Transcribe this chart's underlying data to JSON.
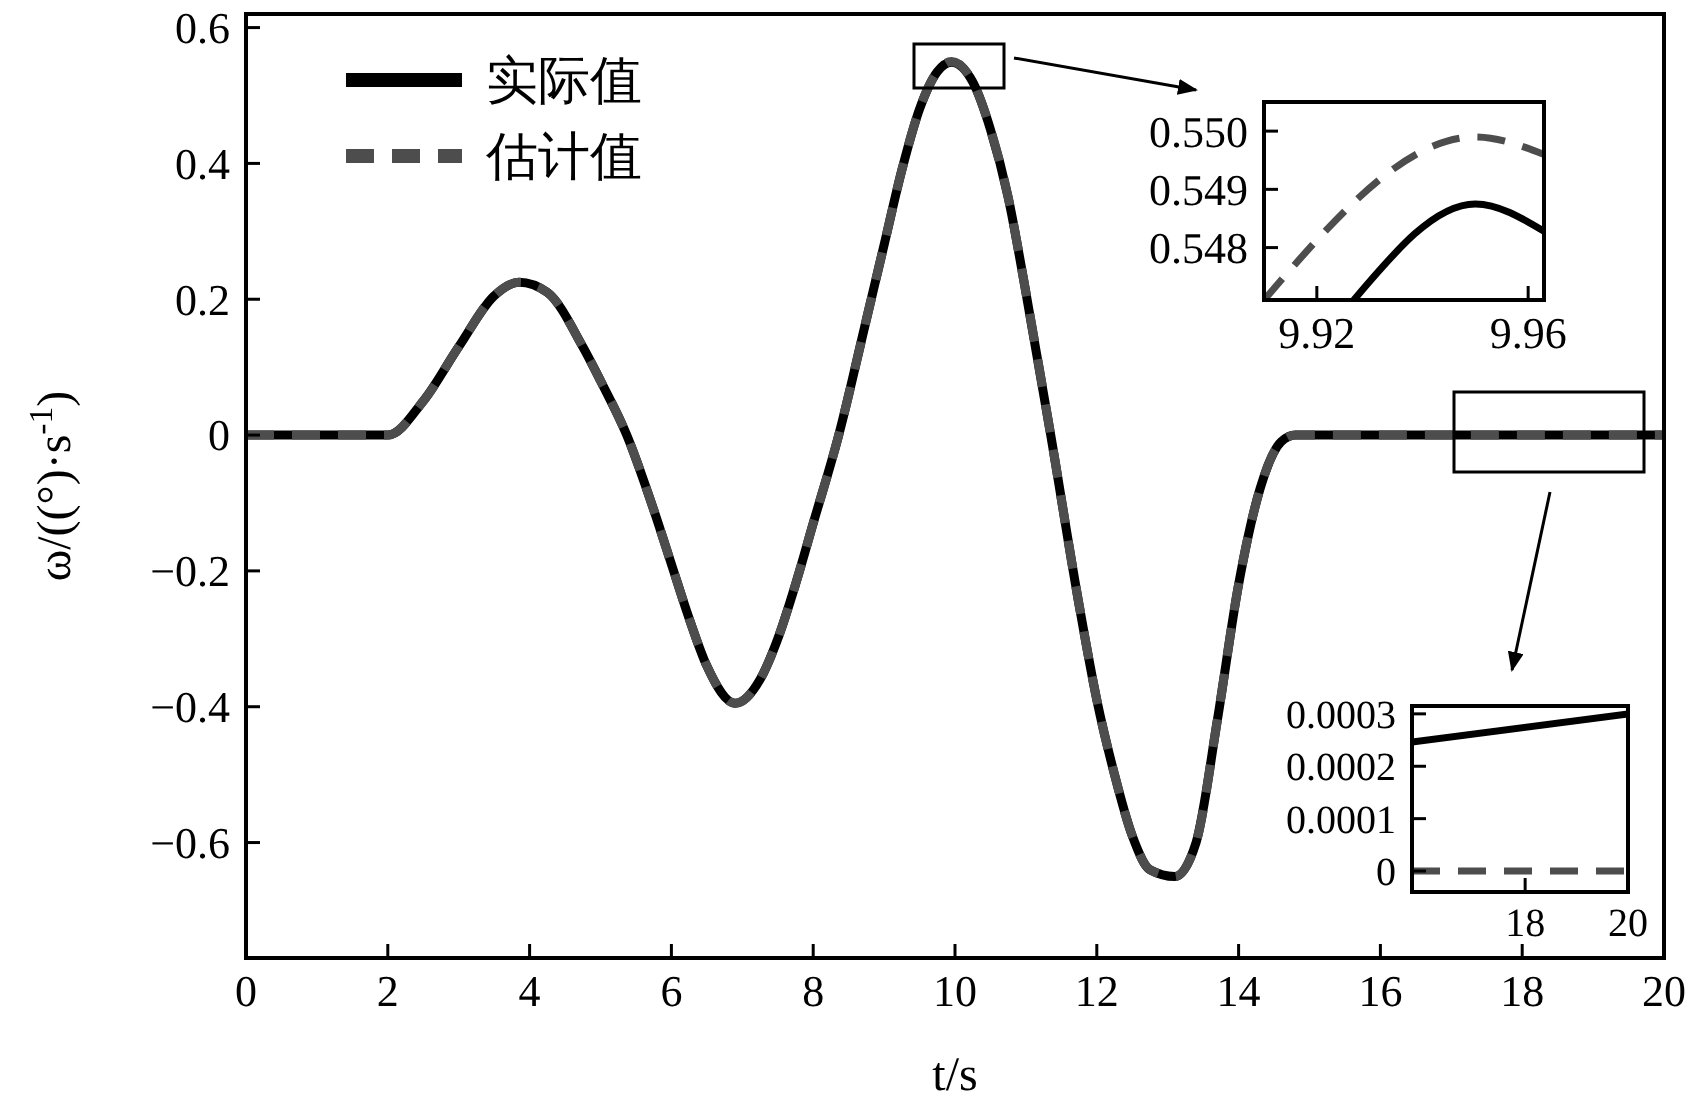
{
  "chart_data": [
    {
      "type": "line",
      "xlabel": "t/s",
      "ylabel": "ω/((°)·s$^{-1}$)",
      "xlim": [
        0,
        20
      ],
      "ylim": [
        -0.77,
        0.62
      ],
      "xticks": [
        0,
        2,
        4,
        6,
        8,
        10,
        12,
        14,
        16,
        18,
        20
      ],
      "yticks": [
        {
          "value": -0.6,
          "label": "−0.6"
        },
        {
          "value": -0.4,
          "label": "−0.4"
        },
        {
          "value": -0.2,
          "label": "−0.2"
        },
        0,
        0.2,
        0.4,
        0.6
      ],
      "legend": "top left",
      "grid": false,
      "series": [
        {
          "name": "实际值",
          "color": "#000000",
          "line_style": "solid",
          "x": [
            0,
            2,
            2.5,
            3,
            3.5,
            3.85,
            4.25,
            4.75,
            5,
            5.37,
            5.75,
            6,
            6.25,
            6.5,
            6.9,
            7.25,
            7.5,
            7.75,
            8,
            8.36,
            8.75,
            9,
            9.25,
            9.5,
            9.75,
            9.95,
            10.25,
            10.5,
            10.75,
            11,
            11.35,
            11.75,
            12,
            12.25,
            12.5,
            12.75,
            13.1,
            13.4,
            13.7,
            14,
            14.3,
            14.6,
            14.8,
            20
          ],
          "values": [
            0,
            0,
            0.05,
            0.13,
            0.205,
            0.225,
            0.21,
            0.13,
            0.08,
            0,
            -0.11,
            -0.19,
            -0.27,
            -0.34,
            -0.395,
            -0.36,
            -0.3,
            -0.22,
            -0.13,
            0,
            0.17,
            0.28,
            0.39,
            0.48,
            0.535,
            0.549,
            0.52,
            0.45,
            0.35,
            0.21,
            0,
            -0.25,
            -0.39,
            -0.5,
            -0.59,
            -0.64,
            -0.65,
            -0.6,
            -0.42,
            -0.22,
            -0.08,
            -0.01,
            0,
            0
          ]
        },
        {
          "name": "估计值",
          "color": "#4d4d4d",
          "line_style": "dashed",
          "x": [
            0,
            2,
            2.5,
            3,
            3.5,
            3.85,
            4.25,
            4.75,
            5,
            5.37,
            5.75,
            6,
            6.25,
            6.5,
            6.9,
            7.25,
            7.5,
            7.75,
            8,
            8.36,
            8.75,
            9,
            9.25,
            9.5,
            9.75,
            9.95,
            10.25,
            10.5,
            10.75,
            11,
            11.35,
            11.75,
            12,
            12.25,
            12.5,
            12.75,
            13.1,
            13.4,
            13.7,
            14,
            14.3,
            14.6,
            14.8,
            20
          ],
          "values": [
            0,
            0,
            0.05,
            0.13,
            0.205,
            0.225,
            0.21,
            0.13,
            0.08,
            0,
            -0.11,
            -0.19,
            -0.27,
            -0.34,
            -0.395,
            -0.36,
            -0.3,
            -0.22,
            -0.13,
            0,
            0.17,
            0.28,
            0.39,
            0.48,
            0.535,
            0.55,
            0.52,
            0.45,
            0.35,
            0.21,
            0,
            -0.25,
            -0.39,
            -0.5,
            -0.59,
            -0.64,
            -0.65,
            -0.6,
            -0.42,
            -0.22,
            -0.08,
            -0.01,
            0,
            0
          ]
        }
      ]
    },
    {
      "type": "line",
      "xlim": [
        9.91,
        9.963
      ],
      "ylim": [
        0.5471,
        0.5505
      ],
      "xticks": [
        9.92,
        9.96
      ],
      "yticks": [
        {
          "value": 0.548,
          "label": "0.548"
        },
        {
          "value": 0.549,
          "label": "0.549"
        },
        {
          "value": 0.55,
          "label": "0.550"
        }
      ],
      "series": [
        {
          "color": "#000000",
          "line_style": "solid",
          "x": [
            9.927,
            9.95,
            9.963
          ],
          "values": [
            0.5471,
            0.54875,
            0.54828
          ]
        },
        {
          "color": "#4d4d4d",
          "line_style": "dashed",
          "x": [
            9.91,
            9.95,
            9.963
          ],
          "values": [
            0.5471,
            0.5499,
            0.5496
          ]
        }
      ]
    },
    {
      "type": "line",
      "xlim": [
        15.8,
        20
      ],
      "ylim": [
        -4e-05,
        0.000315
      ],
      "xticks": [
        18,
        20
      ],
      "yticks": [
        0,
        0.0001,
        0.0002,
        0.0003
      ],
      "series": [
        {
          "color": "#000000",
          "line_style": "solid",
          "x": [
            15.8,
            20
          ],
          "values": [
            0.000246,
            0.0003
          ]
        },
        {
          "color": "#4d4d4d",
          "line_style": "dashed",
          "x": [
            15.8,
            20
          ],
          "values": [
            0,
            0
          ]
        }
      ]
    }
  ]
}
